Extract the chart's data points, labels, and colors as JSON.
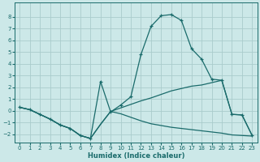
{
  "xlabel": "Humidex (Indice chaleur)",
  "background_color": "#cce8e8",
  "grid_color": "#aacccc",
  "line_color": "#1a6b6b",
  "xlim": [
    -0.5,
    23.5
  ],
  "ylim": [
    -2.7,
    9.2
  ],
  "yticks": [
    -2,
    -1,
    0,
    1,
    2,
    3,
    4,
    5,
    6,
    7,
    8
  ],
  "xticks": [
    0,
    1,
    2,
    3,
    4,
    5,
    6,
    7,
    8,
    9,
    10,
    11,
    12,
    13,
    14,
    15,
    16,
    17,
    18,
    19,
    20,
    21,
    22,
    23
  ],
  "line1_x": [
    0,
    1,
    2,
    3,
    4,
    5,
    6,
    7,
    8,
    9,
    10,
    11,
    12,
    13,
    14,
    15,
    16,
    17,
    18,
    19,
    20,
    21,
    22,
    23
  ],
  "line1_y": [
    0.3,
    0.1,
    -0.3,
    -0.7,
    -1.2,
    -1.5,
    -2.1,
    -2.35,
    -1.15,
    -0.05,
    -0.25,
    -0.55,
    -0.85,
    -1.1,
    -1.25,
    -1.4,
    -1.5,
    -1.6,
    -1.7,
    -1.8,
    -1.9,
    -2.05,
    -2.1,
    -2.15
  ],
  "line2_x": [
    0,
    1,
    2,
    3,
    4,
    5,
    6,
    7,
    8,
    9,
    10,
    11,
    12,
    13,
    14,
    15,
    16,
    17,
    18,
    19,
    20,
    21,
    22,
    23
  ],
  "line2_y": [
    0.3,
    0.1,
    -0.3,
    -0.7,
    -1.2,
    -1.5,
    -2.1,
    -2.35,
    2.5,
    -0.1,
    0.5,
    1.2,
    4.8,
    7.2,
    8.1,
    8.2,
    7.7,
    5.3,
    4.4,
    2.7,
    2.6,
    -0.3,
    -0.35,
    -2.1
  ],
  "line3_x": [
    0,
    1,
    2,
    3,
    4,
    5,
    6,
    7,
    8,
    9,
    10,
    11,
    12,
    13,
    14,
    15,
    16,
    17,
    18,
    19,
    20,
    21,
    22,
    23
  ],
  "line3_y": [
    0.3,
    0.1,
    -0.3,
    -0.7,
    -1.2,
    -1.5,
    -2.1,
    -2.35,
    -1.15,
    -0.05,
    0.25,
    0.55,
    0.85,
    1.1,
    1.4,
    1.7,
    1.9,
    2.1,
    2.2,
    2.4,
    2.6,
    -0.3,
    -0.35,
    -2.1
  ]
}
